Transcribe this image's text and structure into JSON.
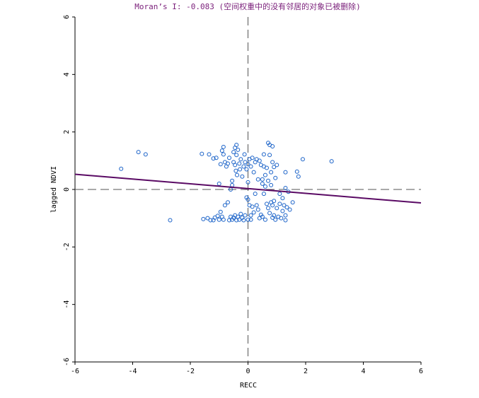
{
  "chart_data": {
    "type": "scatter",
    "title": "Moran’s I: -0.083 (空间权重中的没有邻居的对象已被删除)",
    "xlabel": "RECC",
    "ylabel": "lagged NDVI",
    "xlim": [
      -6,
      6
    ],
    "ylim": [
      -6,
      6
    ],
    "xticks": [
      "-6",
      "-4",
      "-2",
      "0",
      "2",
      "4",
      "6"
    ],
    "yticks": [
      "-6",
      "-4",
      "-2",
      "0",
      "2",
      "4",
      "6"
    ],
    "slope": -0.083,
    "intercept": 0.03,
    "point_color": "#1a62c8",
    "line_color": "#5a0a64",
    "points": [
      [
        -4.4,
        0.72
      ],
      [
        -3.8,
        1.3
      ],
      [
        -3.55,
        1.22
      ],
      [
        -2.7,
        -1.07
      ],
      [
        -1.6,
        1.24
      ],
      [
        -1.35,
        1.22
      ],
      [
        -1.2,
        1.08
      ],
      [
        -1.1,
        1.1
      ],
      [
        -1.0,
        0.2
      ],
      [
        -0.95,
        0.88
      ],
      [
        -0.9,
        1.35
      ],
      [
        -0.85,
        1.48
      ],
      [
        -0.85,
        1.22
      ],
      [
        -0.8,
        0.95
      ],
      [
        -0.75,
        0.8
      ],
      [
        -0.7,
        0.9
      ],
      [
        -0.65,
        1.1
      ],
      [
        -0.6,
        0.0
      ],
      [
        -0.55,
        0.15
      ],
      [
        -0.55,
        0.3
      ],
      [
        -0.5,
        1.3
      ],
      [
        -0.5,
        0.95
      ],
      [
        -0.45,
        1.45
      ],
      [
        -0.45,
        0.85
      ],
      [
        -0.42,
        0.65
      ],
      [
        -0.4,
        1.55
      ],
      [
        -0.4,
        1.2
      ],
      [
        -0.38,
        0.5
      ],
      [
        -0.35,
        1.38
      ],
      [
        -0.3,
        0.9
      ],
      [
        -0.28,
        0.7
      ],
      [
        -0.25,
        1.05
      ],
      [
        -0.2,
        0.45
      ],
      [
        -0.15,
        0.8
      ],
      [
        -0.12,
        1.22
      ],
      [
        -0.1,
        0.95
      ],
      [
        -0.05,
        0.7
      ],
      [
        0.0,
        0.88
      ],
      [
        0.0,
        0.25
      ],
      [
        0.05,
        1.05
      ],
      [
        0.1,
        0.8
      ],
      [
        0.15,
        1.1
      ],
      [
        0.2,
        0.6
      ],
      [
        0.25,
        0.95
      ],
      [
        0.3,
        1.05
      ],
      [
        0.35,
        0.35
      ],
      [
        0.4,
        1.0
      ],
      [
        0.45,
        0.85
      ],
      [
        0.5,
        0.2
      ],
      [
        0.5,
        0.35
      ],
      [
        0.55,
        0.8
      ],
      [
        0.55,
        1.22
      ],
      [
        0.6,
        0.1
      ],
      [
        0.6,
        0.5
      ],
      [
        0.65,
        0.75
      ],
      [
        0.7,
        0.3
      ],
      [
        0.7,
        1.62
      ],
      [
        0.75,
        1.55
      ],
      [
        0.75,
        1.2
      ],
      [
        0.8,
        0.6
      ],
      [
        0.8,
        0.15
      ],
      [
        0.85,
        0.95
      ],
      [
        0.85,
        1.5
      ],
      [
        0.9,
        0.78
      ],
      [
        0.95,
        0.4
      ],
      [
        1.0,
        0.85
      ],
      [
        1.3,
        0.6
      ],
      [
        1.3,
        0.05
      ],
      [
        1.7,
        0.62
      ],
      [
        1.75,
        0.45
      ],
      [
        1.9,
        1.05
      ],
      [
        2.9,
        0.98
      ],
      [
        -1.55,
        -1.03
      ],
      [
        -1.4,
        -1.0
      ],
      [
        -1.3,
        -1.07
      ],
      [
        -1.2,
        -1.07
      ],
      [
        -1.15,
        -0.98
      ],
      [
        -1.05,
        -0.92
      ],
      [
        -1.0,
        -1.05
      ],
      [
        -0.95,
        -0.78
      ],
      [
        -0.9,
        -0.95
      ],
      [
        -0.85,
        -1.05
      ],
      [
        -0.8,
        -0.55
      ],
      [
        -0.7,
        -0.45
      ],
      [
        -0.65,
        -1.07
      ],
      [
        -0.6,
        -0.95
      ],
      [
        -0.55,
        -1.05
      ],
      [
        -0.5,
        -0.98
      ],
      [
        -0.45,
        -0.9
      ],
      [
        -0.4,
        -1.07
      ],
      [
        -0.35,
        -0.95
      ],
      [
        -0.3,
        -1.05
      ],
      [
        -0.25,
        -0.85
      ],
      [
        -0.2,
        -0.98
      ],
      [
        -0.15,
        -1.07
      ],
      [
        -0.1,
        -0.9
      ],
      [
        -0.05,
        -0.28
      ],
      [
        0.0,
        -0.35
      ],
      [
        0.0,
        -1.05
      ],
      [
        0.05,
        -0.55
      ],
      [
        0.1,
        -0.9
      ],
      [
        0.1,
        -1.05
      ],
      [
        0.15,
        -0.6
      ],
      [
        0.2,
        -0.8
      ],
      [
        0.25,
        -0.15
      ],
      [
        0.3,
        -0.55
      ],
      [
        0.35,
        -0.7
      ],
      [
        0.4,
        -1.0
      ],
      [
        0.45,
        -0.88
      ],
      [
        0.5,
        -0.95
      ],
      [
        0.55,
        -0.15
      ],
      [
        0.6,
        -1.05
      ],
      [
        0.65,
        -0.5
      ],
      [
        0.7,
        -0.65
      ],
      [
        0.75,
        -0.82
      ],
      [
        0.8,
        -0.45
      ],
      [
        0.85,
        -0.98
      ],
      [
        0.85,
        -0.55
      ],
      [
        0.9,
        -0.4
      ],
      [
        0.9,
        -0.9
      ],
      [
        0.95,
        -1.05
      ],
      [
        1.0,
        -0.65
      ],
      [
        1.05,
        -0.95
      ],
      [
        1.1,
        -0.5
      ],
      [
        1.1,
        -0.15
      ],
      [
        1.15,
        -1.0
      ],
      [
        1.2,
        -0.3
      ],
      [
        1.2,
        -0.75
      ],
      [
        1.25,
        -0.55
      ],
      [
        1.3,
        -0.9
      ],
      [
        1.3,
        -1.07
      ],
      [
        1.35,
        -0.62
      ],
      [
        1.4,
        -0.08
      ],
      [
        1.45,
        -0.7
      ],
      [
        1.55,
        -0.45
      ]
    ]
  }
}
